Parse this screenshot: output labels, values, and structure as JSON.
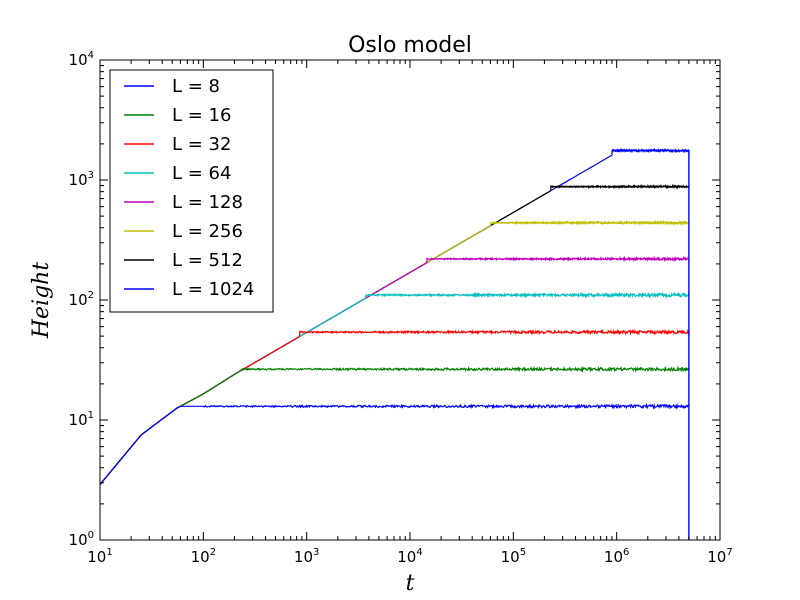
{
  "chart_data": {
    "type": "line",
    "title": "Oslo model",
    "xlabel": "t",
    "ylabel": "Height",
    "xscale": "log",
    "yscale": "log",
    "xlim": [
      10,
      10000000
    ],
    "ylim": [
      1,
      10000
    ],
    "x_ticks": [
      {
        "base": "10",
        "exp": "1"
      },
      {
        "base": "10",
        "exp": "2"
      },
      {
        "base": "10",
        "exp": "3"
      },
      {
        "base": "10",
        "exp": "4"
      },
      {
        "base": "10",
        "exp": "5"
      },
      {
        "base": "10",
        "exp": "6"
      },
      {
        "base": "10",
        "exp": "7"
      }
    ],
    "y_ticks": [
      {
        "base": "10",
        "exp": "0"
      },
      {
        "base": "10",
        "exp": "1"
      },
      {
        "base": "10",
        "exp": "2"
      },
      {
        "base": "10",
        "exp": "3"
      },
      {
        "base": "10",
        "exp": "4"
      }
    ],
    "legend_position": "top-left",
    "growth_curve": {
      "x": [
        10,
        25,
        55,
        100,
        200
      ],
      "y": [
        2.9,
        7.5,
        12.5,
        16.5,
        24
      ]
    },
    "series": [
      {
        "name": "L = 8",
        "color": "#0000ff",
        "plateau": 13,
        "crossover": 100,
        "x_end": 5000000
      },
      {
        "name": "L = 16",
        "color": "#008000",
        "plateau": 26.5,
        "crossover": 230,
        "x_end": 5000000
      },
      {
        "name": "L = 32",
        "color": "#ff0000",
        "plateau": 54,
        "crossover": 850,
        "x_end": 5000000
      },
      {
        "name": "L = 64",
        "color": "#00bfbf",
        "plateau": 110,
        "crossover": 3700,
        "x_end": 5000000
      },
      {
        "name": "L = 128",
        "color": "#bf00bf",
        "plateau": 220,
        "crossover": 14500,
        "x_end": 5000000
      },
      {
        "name": "L = 256",
        "color": "#bfbf00",
        "plateau": 440,
        "crossover": 60000,
        "x_end": 5000000
      },
      {
        "name": "L = 512",
        "color": "#000000",
        "plateau": 880,
        "crossover": 230000,
        "x_end": 5000000
      },
      {
        "name": "L = 1024",
        "color": "#0000ff",
        "plateau": 1760,
        "crossover": 900000,
        "x_end": 5000000
      }
    ]
  }
}
